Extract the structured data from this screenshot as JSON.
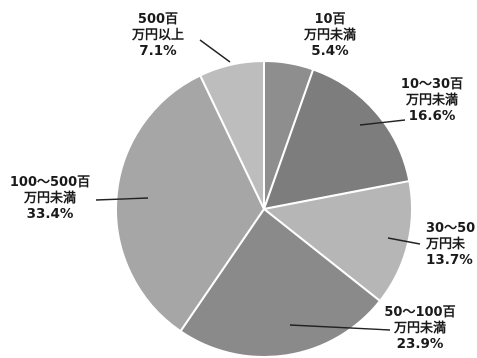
{
  "chart_data": {
    "type": "pie",
    "title": "",
    "start": "12 o'clock",
    "direction": "clockwise",
    "slices": [
      {
        "label_lines": [
          "10百",
          "万円未満"
        ],
        "value": 5.4,
        "value_text": "5.4%",
        "color": "#8e8e8e"
      },
      {
        "label_lines": [
          "10～30百",
          "万円未満"
        ],
        "value": 16.6,
        "value_text": "16.6%",
        "color": "#7d7d7d"
      },
      {
        "label_lines": [
          "30～50",
          "万円未"
        ],
        "value": 13.7,
        "value_text": "13.7%",
        "color": "#b6b6b6"
      },
      {
        "label_lines": [
          "50～100百",
          "万円未満"
        ],
        "value": 23.9,
        "value_text": "23.9%",
        "color": "#8a8a8a"
      },
      {
        "label_lines": [
          "100～500百",
          "万円未満"
        ],
        "value": 33.4,
        "value_text": "33.4%",
        "color": "#a6a6a6"
      },
      {
        "label_lines": [
          "500百",
          "万円以上"
        ],
        "value": 7.1,
        "value_text": "7.1%",
        "color": "#bdbdbd"
      }
    ]
  }
}
